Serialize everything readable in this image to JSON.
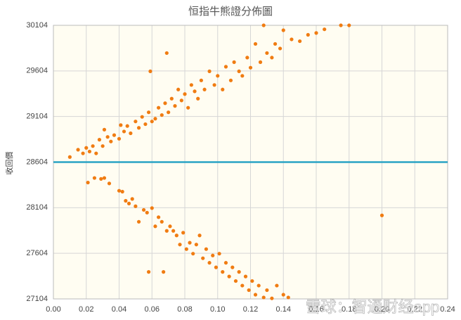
{
  "chart_data": {
    "type": "scatter",
    "title": "恒指牛熊證分佈圖",
    "y_label": "收回價",
    "watermark": "雪球：智通财经app",
    "color": "#f07c12",
    "reference_line": {
      "value": 28604,
      "color": "#2aa3c4"
    },
    "xlim": [
      0,
      0.24
    ],
    "xticks": [
      {
        "value": 0,
        "label": "0.00"
      },
      0.02,
      0.04,
      0.06,
      0.08,
      {
        "value": 0.1,
        "label": "0.10"
      },
      0.12,
      0.14,
      0.16,
      0.18,
      {
        "value": 0.2,
        "label": "0.20"
      },
      0.22,
      0.24
    ],
    "ylim": [
      27104,
      30104
    ],
    "yticks": [
      27104,
      27604,
      28104,
      28604,
      29104,
      29604,
      30104
    ],
    "grid": true,
    "x": [
      0.01,
      0.015,
      0.018,
      0.02,
      0.022,
      0.024,
      0.026,
      0.028,
      0.03,
      0.031,
      0.033,
      0.035,
      0.037,
      0.04,
      0.041,
      0.043,
      0.045,
      0.047,
      0.05,
      0.052,
      0.054,
      0.056,
      0.058,
      0.059,
      0.06,
      0.062,
      0.064,
      0.066,
      0.068,
      0.069,
      0.07,
      0.072,
      0.074,
      0.076,
      0.078,
      0.08,
      0.082,
      0.084,
      0.086,
      0.088,
      0.09,
      0.092,
      0.095,
      0.098,
      0.1,
      0.103,
      0.105,
      0.108,
      0.11,
      0.113,
      0.115,
      0.118,
      0.12,
      0.123,
      0.126,
      0.13,
      0.133,
      0.135,
      0.138,
      0.14,
      0.145,
      0.15,
      0.155,
      0.16,
      0.165,
      0.175,
      0.18,
      0.128,
      0.021,
      0.025,
      0.029,
      0.031,
      0.034,
      0.04,
      0.042,
      0.044,
      0.046,
      0.048,
      0.05,
      0.052,
      0.055,
      0.057,
      0.058,
      0.06,
      0.062,
      0.064,
      0.066,
      0.067,
      0.069,
      0.071,
      0.073,
      0.075,
      0.077,
      0.079,
      0.081,
      0.083,
      0.085,
      0.087,
      0.089,
      0.091,
      0.093,
      0.095,
      0.097,
      0.099,
      0.101,
      0.103,
      0.105,
      0.107,
      0.109,
      0.111,
      0.113,
      0.115,
      0.117,
      0.119,
      0.121,
      0.123,
      0.125,
      0.128,
      0.13,
      0.133,
      0.136,
      0.14,
      0.143,
      0.2
    ],
    "values": [
      28660,
      28740,
      28700,
      28760,
      28720,
      28780,
      28700,
      28850,
      28780,
      28960,
      28880,
      28830,
      28900,
      28860,
      29010,
      28940,
      29000,
      28920,
      29050,
      28980,
      29100,
      29020,
      29150,
      29600,
      29050,
      29080,
      29200,
      29120,
      29250,
      29800,
      29150,
      29300,
      29220,
      29400,
      29280,
      29350,
      29200,
      29450,
      29380,
      29300,
      29500,
      29400,
      29600,
      29450,
      29550,
      29400,
      29650,
      29500,
      29700,
      29600,
      29550,
      29750,
      29640,
      29900,
      29700,
      29800,
      29750,
      29900,
      29850,
      30050,
      29950,
      29930,
      30000,
      30020,
      30060,
      30104,
      30104,
      30104,
      28380,
      28430,
      28420,
      28430,
      28370,
      28290,
      28280,
      28180,
      28150,
      28200,
      28120,
      27950,
      28080,
      28050,
      27400,
      28100,
      27900,
      28000,
      27950,
      27400,
      27850,
      27900,
      27850,
      27800,
      27700,
      27830,
      27650,
      27720,
      27600,
      27700,
      27800,
      27550,
      27650,
      27500,
      27580,
      27450,
      27600,
      27400,
      27500,
      27350,
      27450,
      27300,
      27400,
      27250,
      27350,
      27200,
      27300,
      27150,
      27250,
      27120,
      27200,
      27110,
      27250,
      27150,
      27120,
      28020
    ]
  }
}
